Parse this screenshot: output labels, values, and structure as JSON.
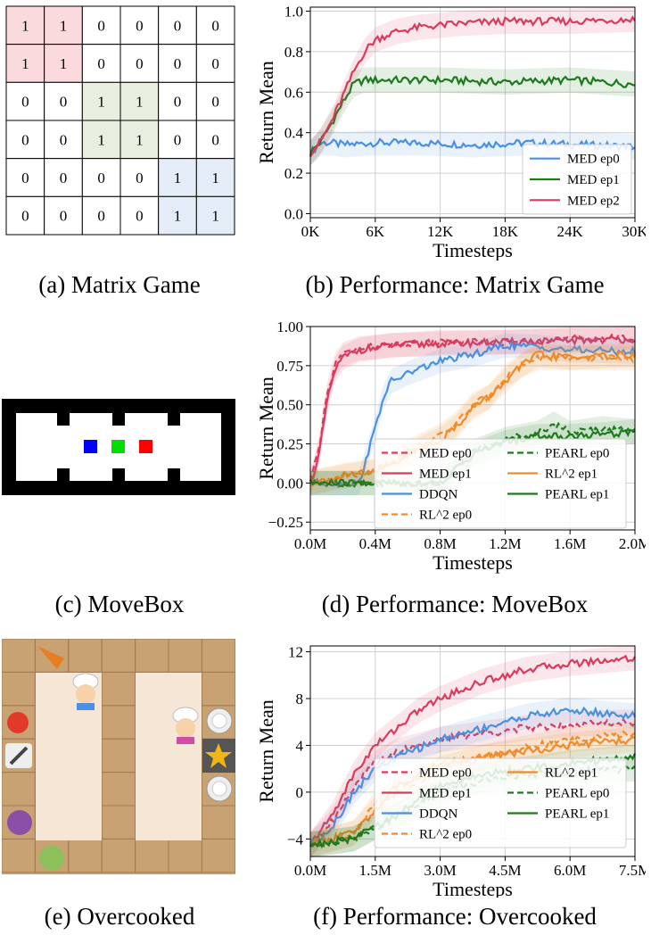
{
  "captions": {
    "a": "(a) Matrix Game",
    "b": "(b) Performance: Matrix Game",
    "c": "(c) MoveBox",
    "d": "(d) Performance: MoveBox",
    "e": "(e) Overcooked",
    "f": "(f) Performance: Overcooked"
  },
  "matrix": {
    "cells": [
      [
        1,
        1,
        0,
        0,
        0,
        0
      ],
      [
        1,
        1,
        0,
        0,
        0,
        0
      ],
      [
        0,
        0,
        1,
        1,
        0,
        0
      ],
      [
        0,
        0,
        1,
        1,
        0,
        0
      ],
      [
        0,
        0,
        0,
        0,
        1,
        1
      ],
      [
        0,
        0,
        0,
        0,
        1,
        1
      ]
    ],
    "block_colors": [
      "#fadadd",
      "#e7f0e0",
      "#e3ecf7"
    ]
  },
  "movebox": {
    "box_colors": [
      "#0000ff",
      "#00dd00",
      "#ff0000"
    ]
  },
  "overcooked": {
    "floor_color": "#c8a272",
    "counter_color": "#f5e6d6"
  },
  "chart_data": [
    {
      "id": "matrix_game",
      "type": "line",
      "xlabel": "Timesteps",
      "ylabel": "Return Mean",
      "xlim": [
        0,
        30000
      ],
      "ylim": [
        -0.02,
        1.02
      ],
      "xticks": [
        0,
        6000,
        12000,
        18000,
        24000,
        30000
      ],
      "xtick_labels": [
        "0K",
        "6K",
        "12K",
        "18K",
        "24K",
        "30K"
      ],
      "yticks": [
        0.0,
        0.2,
        0.4,
        0.6,
        0.8,
        1.0
      ],
      "ytick_labels": [
        "0.0",
        "0.2",
        "0.4",
        "0.6",
        "0.8",
        "1.0"
      ],
      "legend_position": "lower-right",
      "series": [
        {
          "name": "MED ep0",
          "color": "#4a90e2",
          "dash": false,
          "x": [
            0,
            1000,
            2000,
            3000,
            6000,
            10000,
            15000,
            20000,
            25000,
            30000
          ],
          "y": [
            0.3,
            0.35,
            0.35,
            0.34,
            0.35,
            0.35,
            0.34,
            0.35,
            0.34,
            0.33
          ]
        },
        {
          "name": "MED ep1",
          "color": "#1f7a1f",
          "dash": false,
          "x": [
            0,
            1000,
            2000,
            3000,
            4000,
            5000,
            8000,
            12000,
            18000,
            24000,
            30000
          ],
          "y": [
            0.3,
            0.36,
            0.45,
            0.55,
            0.64,
            0.66,
            0.66,
            0.66,
            0.65,
            0.66,
            0.64
          ]
        },
        {
          "name": "MED ep2",
          "color": "#dc3a5c",
          "dash": false,
          "x": [
            0,
            1000,
            2000,
            3000,
            4000,
            5000,
            6000,
            8000,
            10000,
            14000,
            18000,
            24000,
            30000
          ],
          "y": [
            0.3,
            0.36,
            0.46,
            0.58,
            0.7,
            0.8,
            0.86,
            0.9,
            0.92,
            0.94,
            0.95,
            0.95,
            0.96
          ]
        }
      ]
    },
    {
      "id": "movebox",
      "type": "line",
      "xlabel": "Timesteps",
      "ylabel": "Return Mean",
      "xlim": [
        0,
        2000000
      ],
      "ylim": [
        -0.3,
        1.0
      ],
      "xticks": [
        0,
        400000,
        800000,
        1200000,
        1600000,
        2000000
      ],
      "xtick_labels": [
        "0.0M",
        "0.4M",
        "0.8M",
        "1.2M",
        "1.6M",
        "2.0M"
      ],
      "yticks": [
        -0.25,
        0.0,
        0.25,
        0.5,
        0.75,
        1.0
      ],
      "ytick_labels": [
        "−0.25",
        "0.00",
        "0.25",
        "0.50",
        "0.75",
        "1.00"
      ],
      "legend_position": "lower-center",
      "series": [
        {
          "name": "MED ep0",
          "color": "#dc3a5c",
          "dash": true,
          "x": [
            0,
            50000,
            100000,
            150000,
            200000,
            300000,
            500000,
            800000,
            1200000,
            1600000,
            2000000
          ],
          "y": [
            0.0,
            0.2,
            0.55,
            0.75,
            0.82,
            0.86,
            0.88,
            0.9,
            0.9,
            0.92,
            0.93
          ]
        },
        {
          "name": "MED ep1",
          "color": "#dc3a5c",
          "dash": false,
          "x": [
            0,
            50000,
            100000,
            150000,
            200000,
            300000,
            500000,
            800000,
            1200000,
            1600000,
            2000000
          ],
          "y": [
            0.0,
            0.15,
            0.5,
            0.72,
            0.8,
            0.85,
            0.88,
            0.89,
            0.9,
            0.91,
            0.92
          ]
        },
        {
          "name": "DDQN",
          "color": "#4a90e2",
          "dash": false,
          "x": [
            0,
            300000,
            400000,
            450000,
            500000,
            600000,
            800000,
            1000000,
            1200000,
            1400000,
            1600000,
            2000000
          ],
          "y": [
            0.0,
            0.0,
            0.35,
            0.55,
            0.65,
            0.7,
            0.78,
            0.82,
            0.88,
            0.87,
            0.85,
            0.84
          ]
        },
        {
          "name": "RL^2 ep0",
          "color": "#f28a2a",
          "dash": true,
          "x": [
            0,
            200000,
            400000,
            600000,
            800000,
            900000,
            1000000,
            1100000,
            1200000,
            1300000,
            1400000,
            1600000,
            2000000
          ],
          "y": [
            0.0,
            0.05,
            0.08,
            0.2,
            0.3,
            0.38,
            0.5,
            0.55,
            0.68,
            0.75,
            0.8,
            0.8,
            0.8
          ]
        },
        {
          "name": "PEARL ep0",
          "color": "#1f7a1f",
          "dash": true,
          "x": [
            0,
            800000,
            1000000,
            1200000,
            1400000,
            1500000,
            1600000,
            1800000,
            2000000
          ],
          "y": [
            0.0,
            0.0,
            0.2,
            0.28,
            0.32,
            0.38,
            0.32,
            0.35,
            0.33
          ]
        },
        {
          "name": "RL^2 ep1",
          "color": "#f28a2a",
          "dash": false,
          "x": [
            0,
            200000,
            400000,
            600000,
            800000,
            900000,
            1000000,
            1100000,
            1200000,
            1300000,
            1400000,
            1600000,
            2000000
          ],
          "y": [
            0.0,
            0.04,
            0.07,
            0.18,
            0.28,
            0.36,
            0.48,
            0.55,
            0.65,
            0.75,
            0.82,
            0.8,
            0.82
          ]
        },
        {
          "name": "PEARL ep1",
          "color": "#1f7a1f",
          "dash": false,
          "x": [
            0,
            800000,
            1000000,
            1200000,
            1400000,
            1600000,
            1800000,
            2000000
          ],
          "y": [
            0.0,
            0.0,
            0.18,
            0.26,
            0.3,
            0.3,
            0.31,
            0.33
          ]
        }
      ]
    },
    {
      "id": "overcooked",
      "type": "line",
      "xlabel": "Timesteps",
      "ylabel": "Return Mean",
      "xlim": [
        0,
        7500000
      ],
      "ylim": [
        -5.5,
        12.5
      ],
      "xticks": [
        0,
        1500000,
        3000000,
        4500000,
        6000000,
        7500000
      ],
      "xtick_labels": [
        "0.0M",
        "1.5M",
        "3.0M",
        "4.5M",
        "6.0M",
        "7.5M"
      ],
      "yticks": [
        -4,
        0,
        4,
        8,
        12
      ],
      "ytick_labels": [
        "−4",
        "0",
        "4",
        "8",
        "12"
      ],
      "legend_position": "lower-center",
      "series": [
        {
          "name": "MED ep0",
          "color": "#dc3a5c",
          "dash": true,
          "x": [
            0,
            500000,
            1000000,
            1500000,
            2000000,
            3000000,
            4000000,
            5000000,
            6000000,
            7500000
          ],
          "y": [
            -4.5,
            -2.5,
            0.5,
            2.5,
            3.5,
            4.5,
            5.0,
            5.5,
            5.8,
            6.0
          ]
        },
        {
          "name": "MED ep1",
          "color": "#dc3a5c",
          "dash": false,
          "x": [
            0,
            500000,
            1000000,
            1500000,
            2000000,
            2500000,
            3000000,
            4000000,
            5000000,
            6000000,
            7500000
          ],
          "y": [
            -4.5,
            -2,
            1.5,
            4,
            5.5,
            7,
            8,
            9.5,
            10.5,
            11,
            11.5
          ]
        },
        {
          "name": "DDQN",
          "color": "#4a90e2",
          "dash": false,
          "x": [
            0,
            500000,
            1000000,
            1500000,
            2000000,
            3000000,
            4000000,
            5000000,
            6000000,
            7500000
          ],
          "y": [
            -4.5,
            -3,
            0,
            2,
            3,
            4.5,
            5.5,
            6.5,
            7,
            6.5
          ]
        },
        {
          "name": "RL^2 ep0",
          "color": "#f28a2a",
          "dash": true,
          "x": [
            0,
            1000000,
            1500000,
            2000000,
            3000000,
            4000000,
            5000000,
            6000000,
            7500000
          ],
          "y": [
            -4.5,
            -3.5,
            -1,
            0,
            2,
            3,
            3.8,
            4.5,
            5
          ]
        },
        {
          "name": "RL^2 ep1",
          "color": "#f28a2a",
          "dash": false,
          "x": [
            0,
            1000000,
            1500000,
            2000000,
            3000000,
            4000000,
            5000000,
            6000000,
            7500000
          ],
          "y": [
            -4.5,
            -3.5,
            -1.5,
            0.5,
            2.5,
            3,
            3.5,
            4,
            4.5
          ]
        },
        {
          "name": "PEARL ep0",
          "color": "#1f7a1f",
          "dash": true,
          "x": [
            0,
            1000000,
            2000000,
            3000000,
            4000000,
            5000000,
            6000000,
            7500000
          ],
          "y": [
            -4.5,
            -4,
            -2,
            0,
            1,
            1.5,
            1.8,
            2
          ]
        },
        {
          "name": "PEARL ep1",
          "color": "#1f7a1f",
          "dash": false,
          "x": [
            0,
            1000000,
            2000000,
            3000000,
            4000000,
            5000000,
            6000000,
            7500000
          ],
          "y": [
            -4.5,
            -4,
            -2,
            0.5,
            1.5,
            2,
            2.5,
            3
          ]
        }
      ]
    }
  ]
}
